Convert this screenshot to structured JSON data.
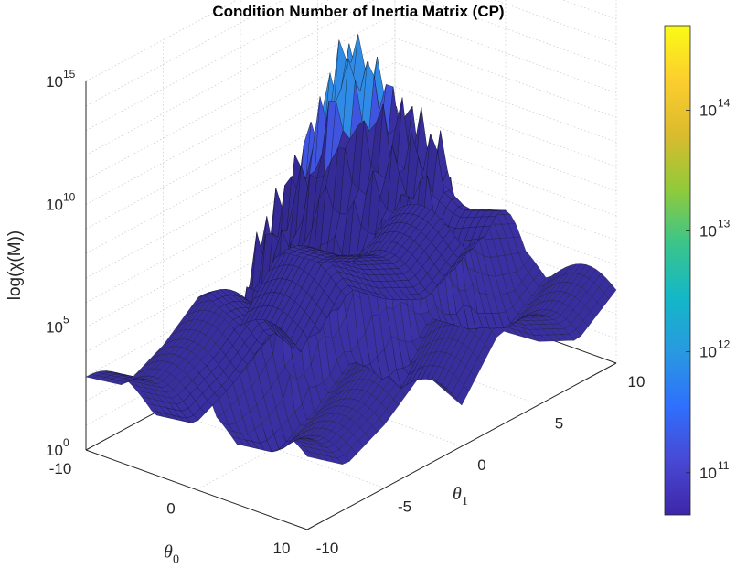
{
  "chart_data": {
    "type": "surface",
    "title": "Condition Number of Inertia Matrix (CP)",
    "xlabel": {
      "base": "θ",
      "sub": "0"
    },
    "ylabel": {
      "base": "θ",
      "sub": "1"
    },
    "zlabel": "log(χ(M))",
    "x_ticks": [
      "-10",
      "0",
      "10"
    ],
    "y_ticks": [
      "-10",
      "-5",
      "0",
      "5",
      "10"
    ],
    "z_ticks": [
      {
        "base": "10",
        "exp": "0"
      },
      {
        "base": "10",
        "exp": "5"
      },
      {
        "base": "10",
        "exp": "10"
      },
      {
        "base": "10",
        "exp": "15"
      }
    ],
    "xlim": [
      -10,
      10
    ],
    "ylim": [
      -10,
      10
    ],
    "zlim_log10": [
      0,
      15
    ],
    "zscale": "log",
    "grid": true,
    "colorbar": {
      "ticks": [
        {
          "base": "10",
          "exp": "11"
        },
        {
          "base": "10",
          "exp": "12"
        },
        {
          "base": "10",
          "exp": "13"
        },
        {
          "base": "10",
          "exp": "14"
        }
      ],
      "range_log10": [
        10.65,
        14.7
      ],
      "colormap": [
        "#3e26a8",
        "#4849d4",
        "#2f6ffd",
        "#2999e0",
        "#13b7c7",
        "#3bc58a",
        "#92ca39",
        "#dbbb2d",
        "#fcce2e",
        "#f9fb15"
      ]
    },
    "surface_profile": {
      "theta1": [
        -10,
        -7.5,
        -5,
        -2.5,
        0,
        2.5,
        5,
        7.5,
        10
      ],
      "baseline_log10": [
        2.4,
        1.2,
        2.0,
        3.3,
        1.1,
        3.3,
        2.0,
        1.2,
        2.4
      ],
      "ridge_log10_along_theta0_0": [
        4.6,
        5.5,
        8.0,
        10.5,
        14.0,
        10.5,
        8.0,
        5.5,
        4.6
      ]
    }
  }
}
